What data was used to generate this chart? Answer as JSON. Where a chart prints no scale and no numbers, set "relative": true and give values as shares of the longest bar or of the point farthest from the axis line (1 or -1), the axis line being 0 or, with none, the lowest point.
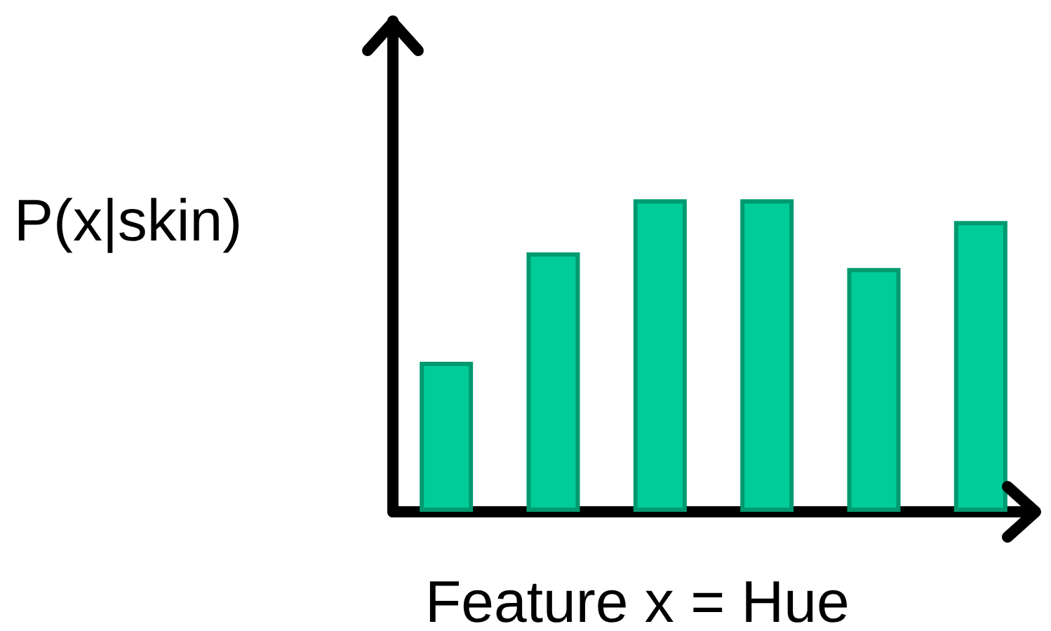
{
  "chart_data": {
    "type": "bar",
    "relative": true,
    "xlabel": "Feature x = Hue",
    "ylabel": "P(x|skin)",
    "categories": [
      null,
      null,
      null,
      null,
      null,
      null
    ],
    "values": [
      0.48,
      0.83,
      1,
      1,
      0.78,
      0.93
    ],
    "color": "#00cc99"
  }
}
